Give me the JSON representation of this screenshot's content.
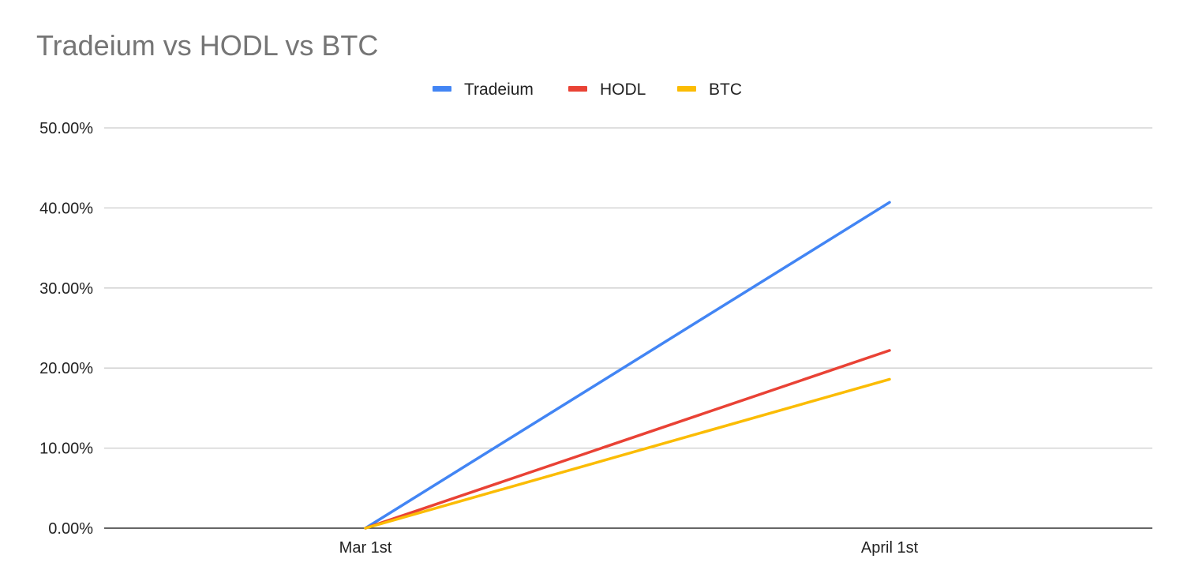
{
  "chart_data": {
    "type": "line",
    "title": "Tradeium vs HODL vs BTC",
    "xlabel": "",
    "ylabel": "",
    "categories": [
      "Mar 1st",
      "April 1st"
    ],
    "series": [
      {
        "name": "Tradeium",
        "color": "#4285f4",
        "values": [
          0.0,
          40.7
        ]
      },
      {
        "name": "HODL",
        "color": "#e94235",
        "values": [
          0.0,
          22.2
        ]
      },
      {
        "name": "BTC",
        "color": "#fbbc04",
        "values": [
          0.0,
          18.6
        ]
      }
    ],
    "ylim": [
      0,
      50
    ],
    "yticks": [
      "0.00%",
      "10.00%",
      "20.00%",
      "30.00%",
      "40.00%",
      "50.00%"
    ],
    "grid": true,
    "legend_position": "top-center"
  }
}
